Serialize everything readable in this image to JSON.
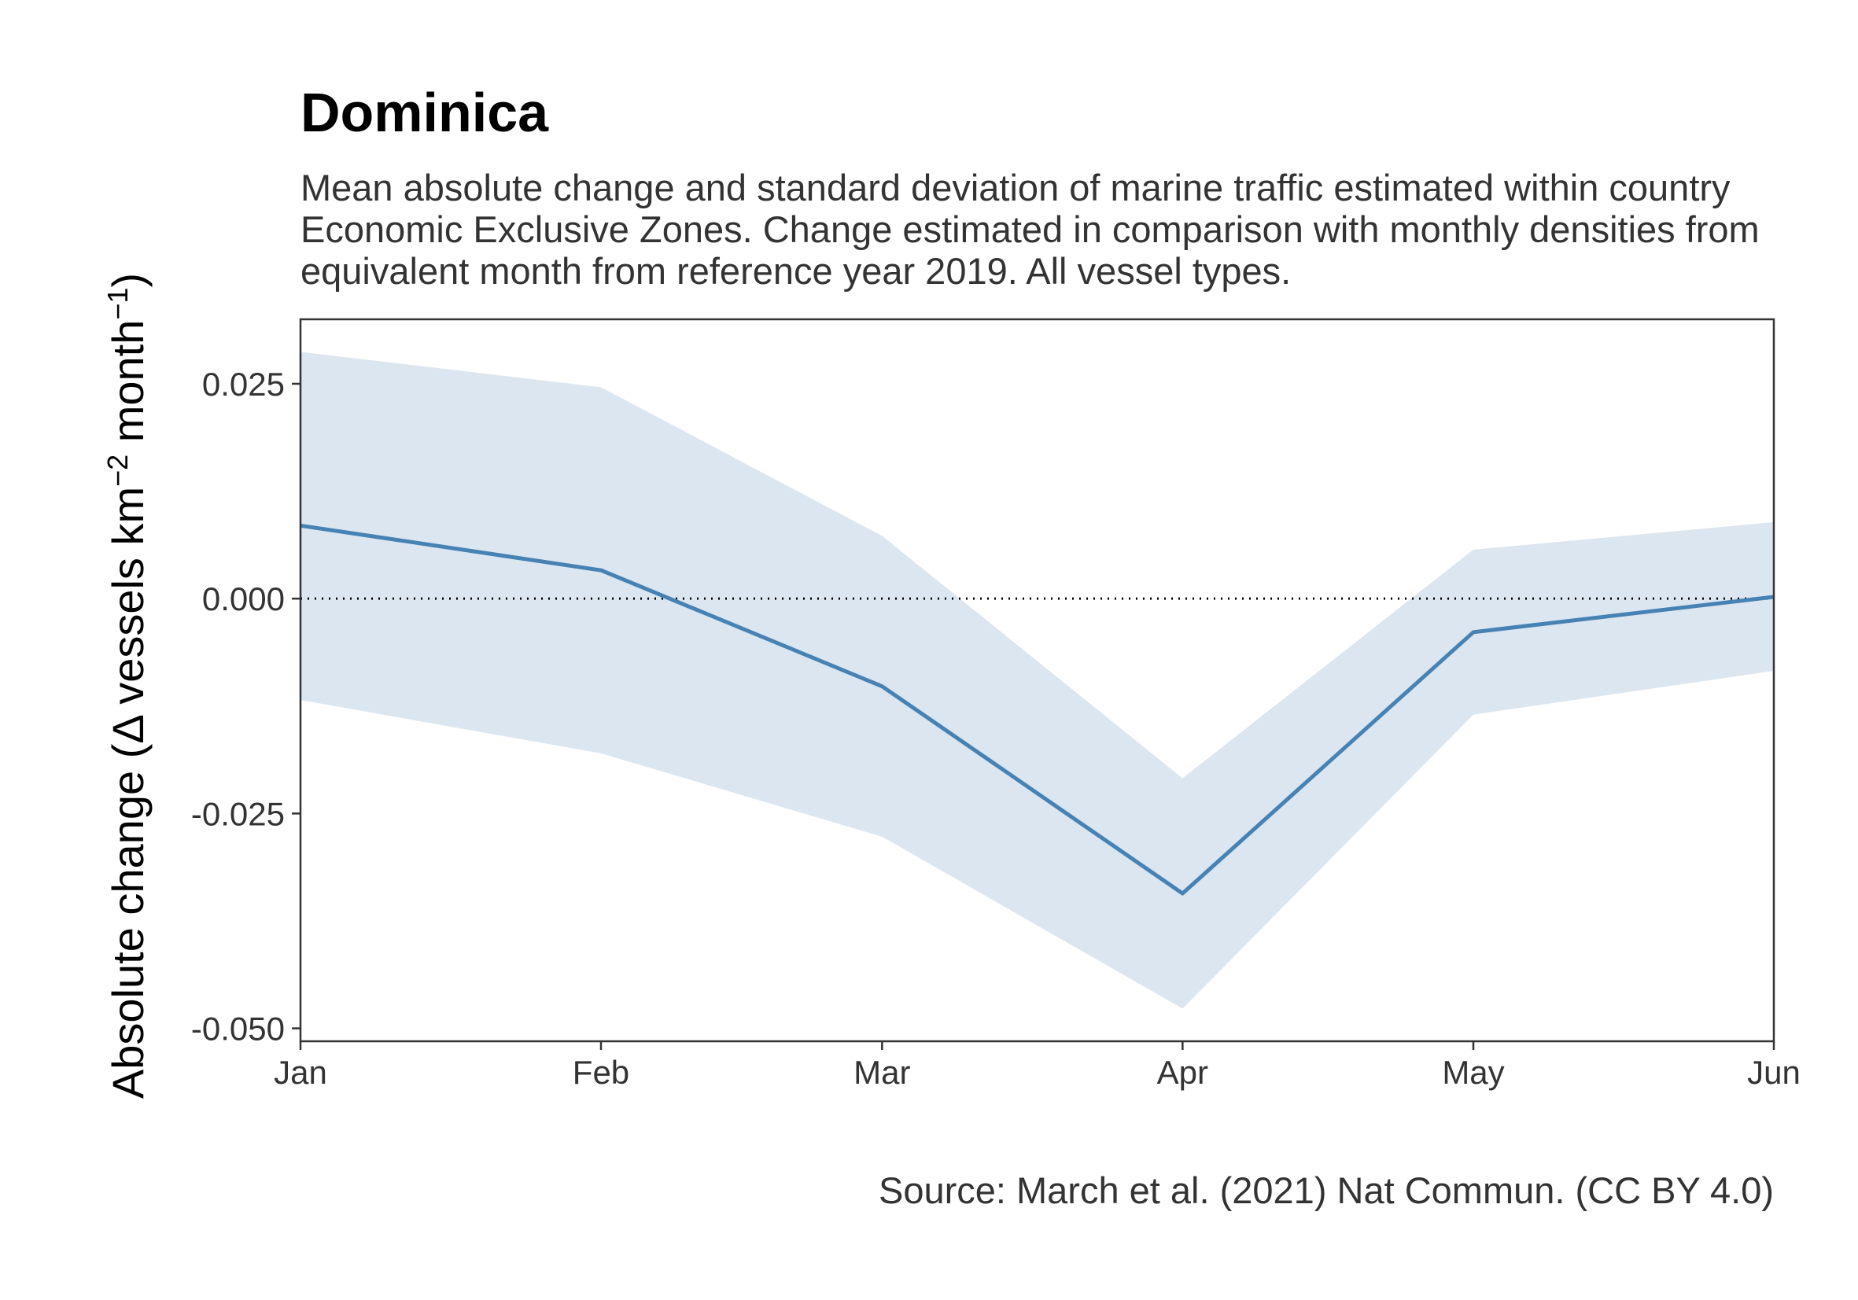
{
  "chart_data": {
    "type": "line",
    "title": "Dominica",
    "subtitle": "Mean absolute change and standard deviation of marine traffic estimated within country Economic Exclusive Zones. Change estimated in comparison with monthly densities from equivalent month from reference year 2019. All vessel types.",
    "caption": "Source: March et al. (2021) Nat Commun. (CC BY 4.0)",
    "xlabel": "",
    "ylabel": {
      "main": "Absolute change (Δ vessels km",
      "sup1": "−2",
      "mid": " month",
      "sup2": "−1",
      "end": ")"
    },
    "categories": [
      "Jan",
      "Feb",
      "Mar",
      "Apr",
      "May",
      "Jun"
    ],
    "x_days": [
      0,
      31,
      60,
      91,
      121,
      152
    ],
    "series": [
      {
        "values": [
          0.0085,
          0.0033,
          -0.0102,
          -0.0343,
          -0.0039,
          0.0002
        ],
        "lower": [
          -0.0118,
          -0.018,
          -0.0277,
          -0.0477,
          -0.0135,
          -0.0084
        ],
        "upper": [
          0.0287,
          0.0246,
          0.0073,
          -0.0209,
          0.0057,
          0.0089
        ]
      }
    ],
    "yticks": [
      "0.025",
      "0.000",
      "-0.025",
      "-0.050"
    ],
    "yticks_values": [
      0.025,
      0.0,
      -0.025,
      -0.05
    ],
    "ylim": [
      -0.0515,
      0.0325
    ],
    "reference_line": 0,
    "colors": {
      "line": "#4682b4",
      "ribbon": "#dce6f0",
      "zero_line": "#000000",
      "axis": "#333333"
    },
    "grid": false
  }
}
